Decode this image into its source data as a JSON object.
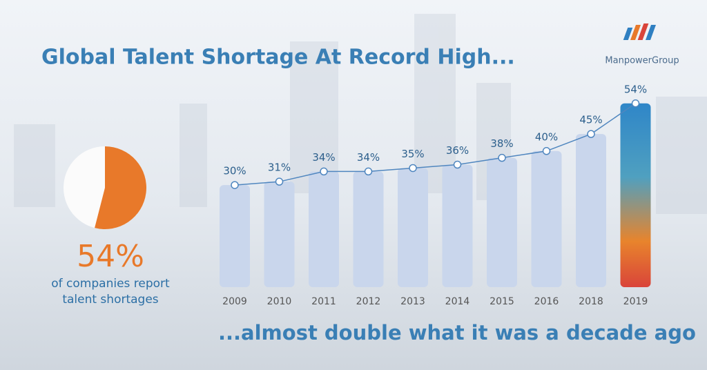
{
  "chart_data": {
    "type": "bar",
    "title": "Global Talent Shortage At Record High...",
    "subtitle": "...almost double what it was a decade ago",
    "brand": "ManpowerGroup",
    "categories": [
      "2009",
      "2010",
      "2011",
      "2012",
      "2013",
      "2014",
      "2015",
      "2016",
      "2018",
      "2019"
    ],
    "values": [
      30,
      31,
      34,
      34,
      35,
      36,
      38,
      40,
      45,
      54
    ],
    "value_labels": [
      "30%",
      "31%",
      "34%",
      "34%",
      "35%",
      "36%",
      "38%",
      "40%",
      "45%",
      "54%"
    ],
    "color": "#c9d6ec",
    "line_color": "#4f86bf",
    "highlight": {
      "value": 54,
      "value_label": "54%",
      "color": "#e8792a",
      "caption": [
        "of companies report",
        "talent shortages"
      ]
    }
  }
}
